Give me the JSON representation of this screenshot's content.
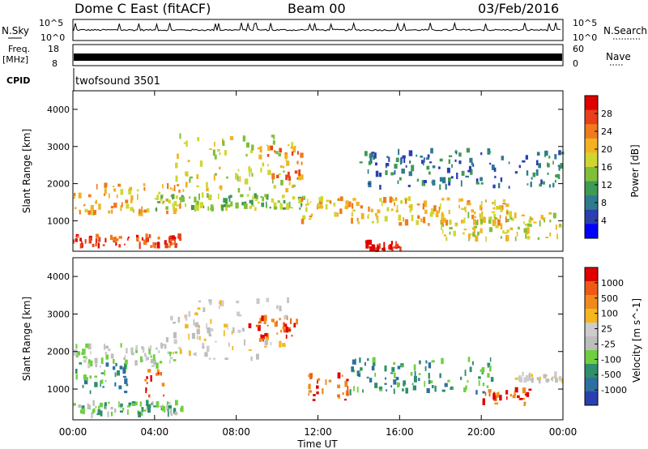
{
  "header": {
    "station": "Dome C East (fitACF)",
    "beam": "Beam 00",
    "date": "03/Feb/2016"
  },
  "strips": {
    "nsky_label": "N.Sky",
    "nsearch_label": "N.Search",
    "freq_label": "Freq.",
    "freq_unit": "[MHz]",
    "nave_label": "Nave",
    "cpid_label": "CPID",
    "cpid_value": "twofsound 3501",
    "left_ticks_top": [
      "10^5",
      "10^0"
    ],
    "right_ticks_top": [
      "10^5",
      "10^0"
    ],
    "left_ticks_freq": [
      "18",
      "8"
    ],
    "right_ticks_nave": [
      "60",
      "0"
    ]
  },
  "chart_data": [
    {
      "type": "heatmap",
      "panel": "power",
      "ylabel": "Slant Range [km]",
      "ylim": [
        180,
        4500
      ],
      "yticks": [
        1000,
        2000,
        3000,
        4000
      ],
      "xlim_hours": [
        0,
        24
      ],
      "colorbar_label": "Power [dB]",
      "colorbar_ticks": [
        "28",
        "24",
        "20",
        "16",
        "12",
        "8",
        "4"
      ],
      "colorbar_colors": [
        "#0000ff",
        "#2a3fb0",
        "#2f7a8f",
        "#3e9a55",
        "#7fbf3a",
        "#cfd631",
        "#f2b222",
        "#f07a1d",
        "#e8401a",
        "#e00000"
      ],
      "regions": [
        {
          "t0": 0.0,
          "t1": 5.3,
          "r0": 300,
          "r1": 600,
          "level": 8
        },
        {
          "t0": 0.0,
          "t1": 5.3,
          "r0": 1200,
          "r1": 2000,
          "level": 6
        },
        {
          "t0": 4.0,
          "t1": 11.5,
          "r0": 1300,
          "r1": 1700,
          "level": 4
        },
        {
          "t0": 5.0,
          "t1": 10.8,
          "r0": 1800,
          "r1": 3300,
          "level": 5
        },
        {
          "t0": 9.5,
          "t1": 11.2,
          "r0": 2100,
          "r1": 3000,
          "level": 7
        },
        {
          "t0": 11.0,
          "t1": 21.5,
          "r0": 900,
          "r1": 1600,
          "level": 6
        },
        {
          "t0": 14.0,
          "t1": 16.0,
          "r0": 200,
          "r1": 450,
          "level": 9
        },
        {
          "t0": 14.0,
          "t1": 24.0,
          "r0": 1900,
          "r1": 2900,
          "level": 2
        },
        {
          "t0": 18.0,
          "t1": 24.0,
          "r0": 500,
          "r1": 1200,
          "level": 5
        }
      ]
    },
    {
      "type": "heatmap",
      "panel": "velocity",
      "xlabel": "Time UT",
      "ylabel": "Slant Range [km]",
      "ylim": [
        180,
        4500
      ],
      "yticks": [
        1000,
        2000,
        3000,
        4000
      ],
      "xlim_hours": [
        0,
        24
      ],
      "xticks": [
        "00:00",
        "04:00",
        "08:00",
        "12:00",
        "16:00",
        "20:00",
        "00:00"
      ],
      "colorbar_label": "Velocity [m s^-1]",
      "colorbar_ticks": [
        "1000",
        "500",
        "100",
        "25",
        "-25",
        "-100",
        "-500",
        "-1000"
      ],
      "colorbar_colors": [
        "#2a3fb0",
        "#2f6fa0",
        "#2e8f6a",
        "#6fcf40",
        "#bdbdbd",
        "#cccccc",
        "#f5b61f",
        "#f08a1c",
        "#ee5a15",
        "#e00000"
      ],
      "regions": [
        {
          "t0": 0.0,
          "t1": 5.3,
          "r0": 300,
          "r1": 650,
          "level": 3
        },
        {
          "t0": 0.0,
          "t1": 2.6,
          "r0": 900,
          "r1": 1700,
          "level": 2
        },
        {
          "t0": 0.0,
          "t1": 5.0,
          "r0": 1600,
          "r1": 2200,
          "level": 4
        },
        {
          "t0": 3.5,
          "t1": 4.5,
          "r0": 800,
          "r1": 1500,
          "level": 8
        },
        {
          "t0": 4.5,
          "t1": 10.5,
          "r0": 1800,
          "r1": 3400,
          "level": 5
        },
        {
          "t0": 8.5,
          "t1": 11.0,
          "r0": 2300,
          "r1": 2900,
          "level": 8
        },
        {
          "t0": 11.5,
          "t1": 13.5,
          "r0": 700,
          "r1": 1400,
          "level": 8
        },
        {
          "t0": 13.5,
          "t1": 20.5,
          "r0": 900,
          "r1": 1800,
          "level": 2
        },
        {
          "t0": 20.0,
          "t1": 22.5,
          "r0": 600,
          "r1": 1000,
          "level": 8
        },
        {
          "t0": 21.5,
          "t1": 24.0,
          "r0": 1200,
          "r1": 1400,
          "level": 5
        }
      ]
    }
  ]
}
